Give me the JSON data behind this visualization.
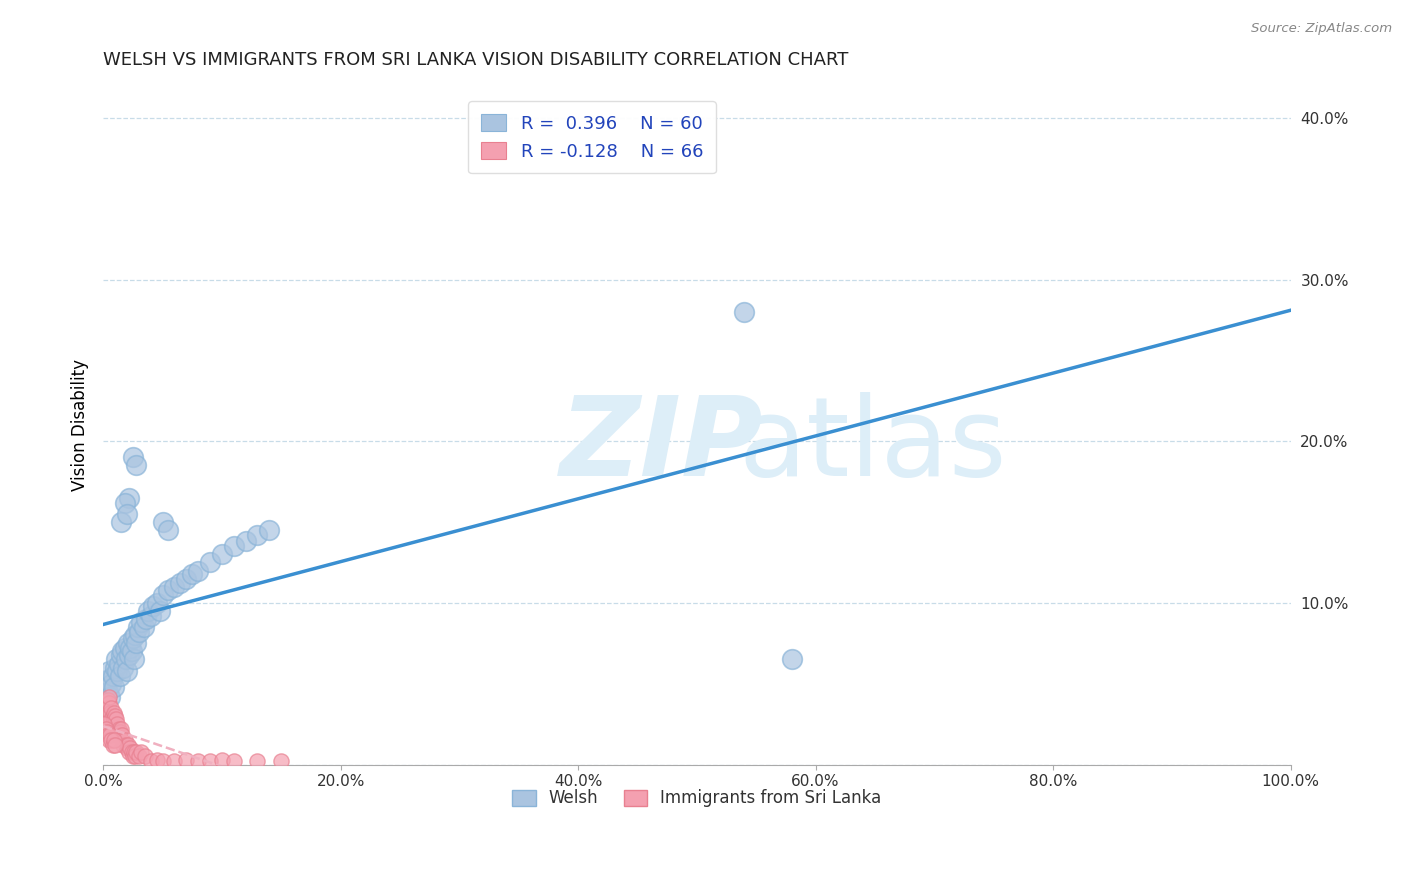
{
  "title": "WELSH VS IMMIGRANTS FROM SRI LANKA VISION DISABILITY CORRELATION CHART",
  "source": "Source: ZipAtlas.com",
  "ylabel": "Vision Disability",
  "xlim": [
    0.0,
    1.0
  ],
  "ylim": [
    0.0,
    0.42
  ],
  "xticks": [
    0.0,
    0.2,
    0.4,
    0.6,
    0.8,
    1.0
  ],
  "xticklabels": [
    "0.0%",
    "20.0%",
    "40.0%",
    "60.0%",
    "80.0%",
    "100.0%"
  ],
  "yticks": [
    0.0,
    0.1,
    0.2,
    0.3,
    0.4
  ],
  "yticklabels": [
    "",
    "10.0%",
    "20.0%",
    "30.0%",
    "40.0%"
  ],
  "welsh_R": 0.396,
  "welsh_N": 60,
  "srilanka_R": -0.128,
  "srilanka_N": 66,
  "welsh_color": "#aac4e0",
  "srilanka_color": "#f4a0b0",
  "welsh_line_color": "#3a8fd1",
  "srilanka_line_color": "#f0b0c0",
  "background_color": "#ffffff",
  "watermark_color": "#ddeef8",
  "welsh_scatter": [
    [
      0.002,
      0.048
    ],
    [
      0.003,
      0.052
    ],
    [
      0.004,
      0.045
    ],
    [
      0.005,
      0.058
    ],
    [
      0.006,
      0.042
    ],
    [
      0.007,
      0.05
    ],
    [
      0.008,
      0.055
    ],
    [
      0.009,
      0.048
    ],
    [
      0.01,
      0.06
    ],
    [
      0.011,
      0.065
    ],
    [
      0.012,
      0.058
    ],
    [
      0.013,
      0.062
    ],
    [
      0.014,
      0.055
    ],
    [
      0.015,
      0.068
    ],
    [
      0.016,
      0.07
    ],
    [
      0.017,
      0.06
    ],
    [
      0.018,
      0.072
    ],
    [
      0.019,
      0.065
    ],
    [
      0.02,
      0.058
    ],
    [
      0.021,
      0.075
    ],
    [
      0.022,
      0.068
    ],
    [
      0.023,
      0.072
    ],
    [
      0.024,
      0.07
    ],
    [
      0.025,
      0.078
    ],
    [
      0.026,
      0.065
    ],
    [
      0.027,
      0.08
    ],
    [
      0.028,
      0.075
    ],
    [
      0.029,
      0.085
    ],
    [
      0.03,
      0.082
    ],
    [
      0.032,
      0.088
    ],
    [
      0.034,
      0.085
    ],
    [
      0.036,
      0.09
    ],
    [
      0.038,
      0.095
    ],
    [
      0.04,
      0.092
    ],
    [
      0.042,
      0.098
    ],
    [
      0.045,
      0.1
    ],
    [
      0.048,
      0.095
    ],
    [
      0.05,
      0.105
    ],
    [
      0.055,
      0.108
    ],
    [
      0.06,
      0.11
    ],
    [
      0.065,
      0.112
    ],
    [
      0.07,
      0.115
    ],
    [
      0.075,
      0.118
    ],
    [
      0.08,
      0.12
    ],
    [
      0.09,
      0.125
    ],
    [
      0.1,
      0.13
    ],
    [
      0.11,
      0.135
    ],
    [
      0.12,
      0.138
    ],
    [
      0.13,
      0.142
    ],
    [
      0.14,
      0.145
    ],
    [
      0.025,
      0.19
    ],
    [
      0.028,
      0.185
    ],
    [
      0.022,
      0.165
    ],
    [
      0.018,
      0.162
    ],
    [
      0.015,
      0.15
    ],
    [
      0.02,
      0.155
    ],
    [
      0.05,
      0.15
    ],
    [
      0.055,
      0.145
    ],
    [
      0.54,
      0.28
    ],
    [
      0.58,
      0.065
    ]
  ],
  "srilanka_scatter": [
    [
      0.001,
      0.03
    ],
    [
      0.002,
      0.035
    ],
    [
      0.002,
      0.038
    ],
    [
      0.003,
      0.032
    ],
    [
      0.003,
      0.028
    ],
    [
      0.004,
      0.04
    ],
    [
      0.004,
      0.035
    ],
    [
      0.005,
      0.038
    ],
    [
      0.005,
      0.042
    ],
    [
      0.006,
      0.03
    ],
    [
      0.006,
      0.032
    ],
    [
      0.007,
      0.028
    ],
    [
      0.007,
      0.035
    ],
    [
      0.008,
      0.03
    ],
    [
      0.008,
      0.025
    ],
    [
      0.009,
      0.032
    ],
    [
      0.009,
      0.028
    ],
    [
      0.01,
      0.025
    ],
    [
      0.01,
      0.03
    ],
    [
      0.011,
      0.022
    ],
    [
      0.011,
      0.028
    ],
    [
      0.012,
      0.025
    ],
    [
      0.012,
      0.02
    ],
    [
      0.013,
      0.022
    ],
    [
      0.013,
      0.018
    ],
    [
      0.014,
      0.02
    ],
    [
      0.015,
      0.018
    ],
    [
      0.015,
      0.022
    ],
    [
      0.016,
      0.018
    ],
    [
      0.016,
      0.015
    ],
    [
      0.017,
      0.012
    ],
    [
      0.018,
      0.015
    ],
    [
      0.019,
      0.012
    ],
    [
      0.02,
      0.01
    ],
    [
      0.021,
      0.012
    ],
    [
      0.022,
      0.008
    ],
    [
      0.023,
      0.01
    ],
    [
      0.024,
      0.008
    ],
    [
      0.025,
      0.005
    ],
    [
      0.026,
      0.008
    ],
    [
      0.027,
      0.005
    ],
    [
      0.028,
      0.008
    ],
    [
      0.03,
      0.005
    ],
    [
      0.032,
      0.008
    ],
    [
      0.035,
      0.005
    ],
    [
      0.04,
      0.002
    ],
    [
      0.045,
      0.003
    ],
    [
      0.05,
      0.002
    ],
    [
      0.06,
      0.002
    ],
    [
      0.07,
      0.003
    ],
    [
      0.08,
      0.002
    ],
    [
      0.09,
      0.002
    ],
    [
      0.1,
      0.003
    ],
    [
      0.11,
      0.002
    ],
    [
      0.13,
      0.002
    ],
    [
      0.15,
      0.002
    ],
    [
      0.001,
      0.025
    ],
    [
      0.002,
      0.022
    ],
    [
      0.003,
      0.02
    ],
    [
      0.004,
      0.018
    ],
    [
      0.005,
      0.015
    ],
    [
      0.006,
      0.018
    ],
    [
      0.007,
      0.015
    ],
    [
      0.008,
      0.012
    ],
    [
      0.009,
      0.015
    ],
    [
      0.01,
      0.012
    ]
  ]
}
